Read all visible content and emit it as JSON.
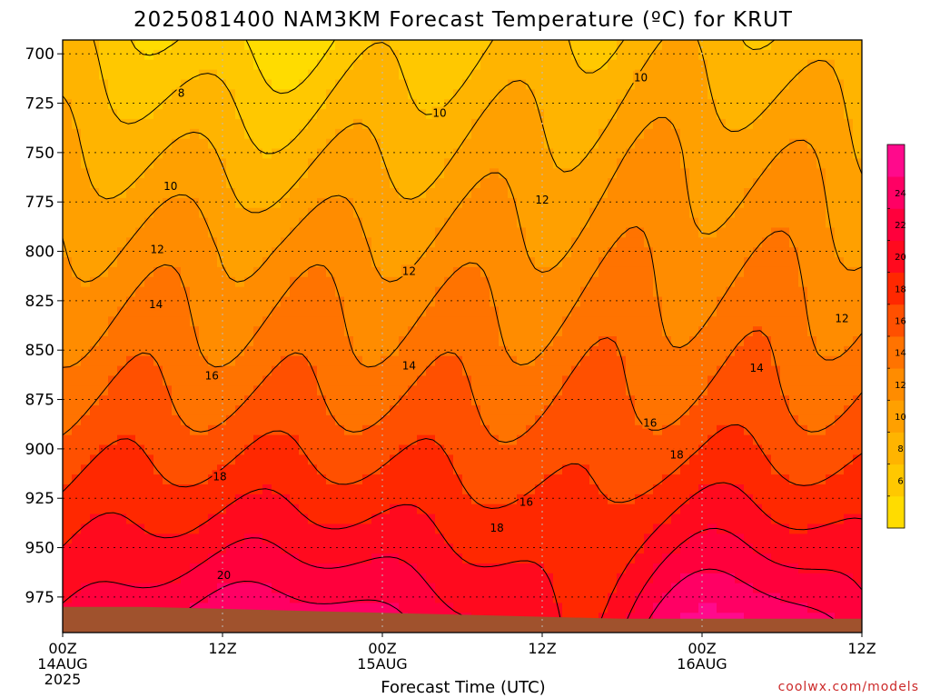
{
  "chart_data": {
    "type": "heatmap",
    "title": "2025081400 NAM3KM Forecast Temperature (ºC) for KRUT",
    "xlabel": "Forecast Time (UTC)",
    "ylabel": "",
    "x_ticks": [
      {
        "hour": 0,
        "time": "00Z",
        "date": "14AUG",
        "year": "2025"
      },
      {
        "hour": 12,
        "time": "12Z",
        "date": "",
        "year": ""
      },
      {
        "hour": 24,
        "time": "00Z",
        "date": "15AUG",
        "year": ""
      },
      {
        "hour": 36,
        "time": "12Z",
        "date": "",
        "year": ""
      },
      {
        "hour": 48,
        "time": "00Z",
        "date": "16AUG",
        "year": ""
      },
      {
        "hour": 60,
        "time": "12Z",
        "date": "",
        "year": ""
      }
    ],
    "xlim": [
      0,
      60
    ],
    "y_ticks": [
      700,
      725,
      750,
      775,
      800,
      825,
      850,
      875,
      900,
      925,
      950,
      975
    ],
    "ylim": [
      993,
      693
    ],
    "grid": true,
    "colorbar": {
      "placement": "right",
      "levels": [
        4,
        6,
        8,
        10,
        12,
        14,
        16,
        18,
        20,
        22,
        24,
        26
      ],
      "tick_labels": [
        6,
        8,
        10,
        12,
        14,
        16,
        18,
        20,
        22,
        24
      ],
      "colors": [
        "#ffdc00",
        "#ffc800",
        "#ffb400",
        "#ffa000",
        "#ff8c00",
        "#ff7300",
        "#ff5000",
        "#ff2800",
        "#ff0a1e",
        "#ff003c",
        "#ff0064",
        "#ff0a8c"
      ]
    },
    "terrain_color": "#a0522d",
    "surface_pressure": {
      "hours": [
        0,
        6,
        12,
        18,
        24,
        30,
        36,
        42,
        48,
        54,
        60
      ],
      "pressure": [
        980,
        980,
        981,
        982,
        983,
        984,
        985,
        986,
        986,
        986,
        986
      ]
    },
    "contour_labels": [
      {
        "value": "8",
        "hour": 8.9,
        "p": 720
      },
      {
        "value": "10",
        "hour": 28.3,
        "p": 730
      },
      {
        "value": "10",
        "hour": 43.4,
        "p": 712
      },
      {
        "value": "10",
        "hour": 8.1,
        "p": 767
      },
      {
        "value": "12",
        "hour": 7.1,
        "p": 799
      },
      {
        "value": "12",
        "hour": 26.0,
        "p": 810
      },
      {
        "value": "12",
        "hour": 36.0,
        "p": 774
      },
      {
        "value": "12",
        "hour": 58.5,
        "p": 834
      },
      {
        "value": "14",
        "hour": 7.0,
        "p": 827
      },
      {
        "value": "14",
        "hour": 26.0,
        "p": 858
      },
      {
        "value": "14",
        "hour": 52.1,
        "p": 859
      },
      {
        "value": "16",
        "hour": 11.2,
        "p": 863
      },
      {
        "value": "16",
        "hour": 44.1,
        "p": 887
      },
      {
        "value": "16",
        "hour": 34.8,
        "p": 927
      },
      {
        "value": "18",
        "hour": 11.8,
        "p": 914
      },
      {
        "value": "18",
        "hour": 46.1,
        "p": 903
      },
      {
        "value": "18",
        "hour": 32.6,
        "p": 940
      },
      {
        "value": "20",
        "hour": 12.1,
        "p": 964
      }
    ]
  },
  "credit": "coolwx.com/models"
}
